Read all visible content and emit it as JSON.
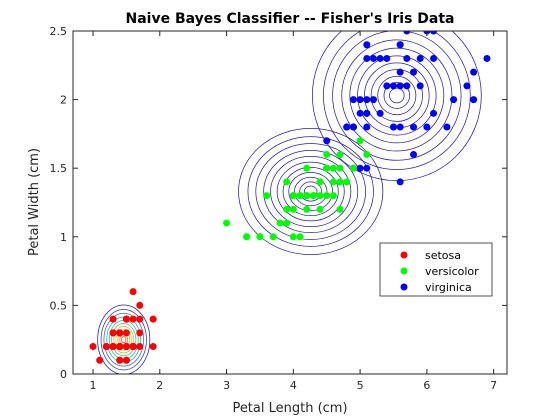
{
  "chart_data": {
    "type": "scatter",
    "title": "Naive Bayes Classifier -- Fisher's Iris Data",
    "xlabel": "Petal Length (cm)",
    "ylabel": "Petal Width (cm)",
    "xlim": [
      0.7,
      7.2
    ],
    "ylim": [
      0,
      2.5
    ],
    "xticks": [
      1,
      2,
      3,
      4,
      5,
      6,
      7
    ],
    "yticks": [
      0,
      0.5,
      1,
      1.5,
      2,
      2.5
    ],
    "xtick_labels": [
      "1",
      "2",
      "3",
      "4",
      "5",
      "6",
      "7"
    ],
    "ytick_labels": [
      "0",
      "0.5",
      "1",
      "1.5",
      "2",
      "2.5"
    ],
    "grid": false,
    "legend_position": "right-middle",
    "series": [
      {
        "name": "setosa",
        "color": "#ff0000",
        "points": [
          [
            1.4,
            0.2
          ],
          [
            1.4,
            0.2
          ],
          [
            1.3,
            0.2
          ],
          [
            1.5,
            0.2
          ],
          [
            1.4,
            0.2
          ],
          [
            1.7,
            0.4
          ],
          [
            1.4,
            0.3
          ],
          [
            1.5,
            0.2
          ],
          [
            1.4,
            0.2
          ],
          [
            1.5,
            0.1
          ],
          [
            1.5,
            0.2
          ],
          [
            1.6,
            0.2
          ],
          [
            1.4,
            0.1
          ],
          [
            1.1,
            0.1
          ],
          [
            1.2,
            0.2
          ],
          [
            1.5,
            0.4
          ],
          [
            1.3,
            0.4
          ],
          [
            1.4,
            0.3
          ],
          [
            1.7,
            0.3
          ],
          [
            1.5,
            0.3
          ],
          [
            1.7,
            0.2
          ],
          [
            1.5,
            0.4
          ],
          [
            1.0,
            0.2
          ],
          [
            1.7,
            0.5
          ],
          [
            1.9,
            0.2
          ],
          [
            1.6,
            0.2
          ],
          [
            1.6,
            0.4
          ],
          [
            1.5,
            0.2
          ],
          [
            1.4,
            0.2
          ],
          [
            1.6,
            0.2
          ],
          [
            1.6,
            0.2
          ],
          [
            1.5,
            0.4
          ],
          [
            1.5,
            0.1
          ],
          [
            1.4,
            0.2
          ],
          [
            1.5,
            0.2
          ],
          [
            1.2,
            0.2
          ],
          [
            1.3,
            0.2
          ],
          [
            1.4,
            0.1
          ],
          [
            1.3,
            0.2
          ],
          [
            1.5,
            0.2
          ],
          [
            1.3,
            0.3
          ],
          [
            1.3,
            0.3
          ],
          [
            1.3,
            0.2
          ],
          [
            1.6,
            0.6
          ],
          [
            1.9,
            0.4
          ],
          [
            1.4,
            0.3
          ],
          [
            1.6,
            0.2
          ],
          [
            1.4,
            0.2
          ],
          [
            1.5,
            0.2
          ],
          [
            1.4,
            0.2
          ]
        ]
      },
      {
        "name": "versicolor",
        "color": "#00ff00",
        "points": [
          [
            4.7,
            1.4
          ],
          [
            4.5,
            1.5
          ],
          [
            4.9,
            1.5
          ],
          [
            4.0,
            1.3
          ],
          [
            4.6,
            1.5
          ],
          [
            4.5,
            1.3
          ],
          [
            4.7,
            1.6
          ],
          [
            3.3,
            1.0
          ],
          [
            4.6,
            1.3
          ],
          [
            3.9,
            1.4
          ],
          [
            3.5,
            1.0
          ],
          [
            4.2,
            1.5
          ],
          [
            4.0,
            1.0
          ],
          [
            4.7,
            1.4
          ],
          [
            3.6,
            1.3
          ],
          [
            4.4,
            1.4
          ],
          [
            4.5,
            1.5
          ],
          [
            4.1,
            1.0
          ],
          [
            4.5,
            1.5
          ],
          [
            3.9,
            1.1
          ],
          [
            4.8,
            1.8
          ],
          [
            4.0,
            1.3
          ],
          [
            4.9,
            1.5
          ],
          [
            4.7,
            1.2
          ],
          [
            4.3,
            1.3
          ],
          [
            4.4,
            1.4
          ],
          [
            4.8,
            1.4
          ],
          [
            5.0,
            1.7
          ],
          [
            4.5,
            1.5
          ],
          [
            3.5,
            1.0
          ],
          [
            3.8,
            1.1
          ],
          [
            3.7,
            1.0
          ],
          [
            3.9,
            1.2
          ],
          [
            5.1,
            1.6
          ],
          [
            4.5,
            1.5
          ],
          [
            4.5,
            1.6
          ],
          [
            4.7,
            1.5
          ],
          [
            4.4,
            1.3
          ],
          [
            4.1,
            1.3
          ],
          [
            4.0,
            1.3
          ],
          [
            4.4,
            1.2
          ],
          [
            4.6,
            1.4
          ],
          [
            4.0,
            1.2
          ],
          [
            3.3,
            1.0
          ],
          [
            4.2,
            1.3
          ],
          [
            4.2,
            1.2
          ],
          [
            4.2,
            1.3
          ],
          [
            4.3,
            1.3
          ],
          [
            3.0,
            1.1
          ],
          [
            4.1,
            1.3
          ]
        ]
      },
      {
        "name": "virginica",
        "color": "#0000ff",
        "points": [
          [
            6.0,
            2.5
          ],
          [
            5.1,
            1.9
          ],
          [
            5.9,
            2.1
          ],
          [
            5.6,
            1.8
          ],
          [
            5.8,
            2.2
          ],
          [
            6.6,
            2.1
          ],
          [
            4.5,
            1.7
          ],
          [
            6.3,
            1.8
          ],
          [
            5.8,
            1.8
          ],
          [
            6.1,
            2.5
          ],
          [
            5.1,
            2.0
          ],
          [
            5.3,
            1.9
          ],
          [
            5.5,
            2.1
          ],
          [
            5.0,
            2.0
          ],
          [
            5.1,
            2.4
          ],
          [
            5.3,
            2.3
          ],
          [
            5.5,
            1.8
          ],
          [
            6.7,
            2.2
          ],
          [
            6.9,
            2.3
          ],
          [
            5.0,
            1.5
          ],
          [
            5.7,
            2.3
          ],
          [
            4.9,
            2.0
          ],
          [
            6.7,
            2.0
          ],
          [
            4.9,
            1.8
          ],
          [
            5.7,
            2.1
          ],
          [
            6.0,
            1.8
          ],
          [
            4.8,
            1.8
          ],
          [
            4.9,
            1.8
          ],
          [
            5.6,
            2.1
          ],
          [
            5.8,
            1.6
          ],
          [
            6.1,
            1.9
          ],
          [
            6.4,
            2.0
          ],
          [
            5.6,
            2.2
          ],
          [
            5.1,
            1.5
          ],
          [
            5.6,
            1.4
          ],
          [
            6.1,
            2.3
          ],
          [
            5.6,
            2.4
          ],
          [
            5.5,
            1.8
          ],
          [
            4.8,
            1.8
          ],
          [
            5.4,
            2.1
          ],
          [
            5.6,
            2.4
          ],
          [
            5.1,
            2.3
          ],
          [
            5.1,
            1.9
          ],
          [
            5.9,
            2.3
          ],
          [
            5.7,
            2.5
          ],
          [
            5.2,
            2.3
          ],
          [
            5.0,
            1.9
          ],
          [
            5.2,
            2.0
          ],
          [
            5.4,
            2.3
          ],
          [
            5.1,
            1.8
          ]
        ]
      }
    ],
    "contours": [
      {
        "class": "setosa",
        "center": [
          1.46,
          0.25
        ],
        "sigma": [
          0.17,
          0.11
        ]
      },
      {
        "class": "versicolor",
        "center": [
          4.26,
          1.33
        ],
        "sigma": [
          0.47,
          0.2
        ]
      },
      {
        "class": "virginica",
        "center": [
          5.55,
          2.03
        ],
        "sigma": [
          0.55,
          0.27
        ]
      }
    ]
  }
}
